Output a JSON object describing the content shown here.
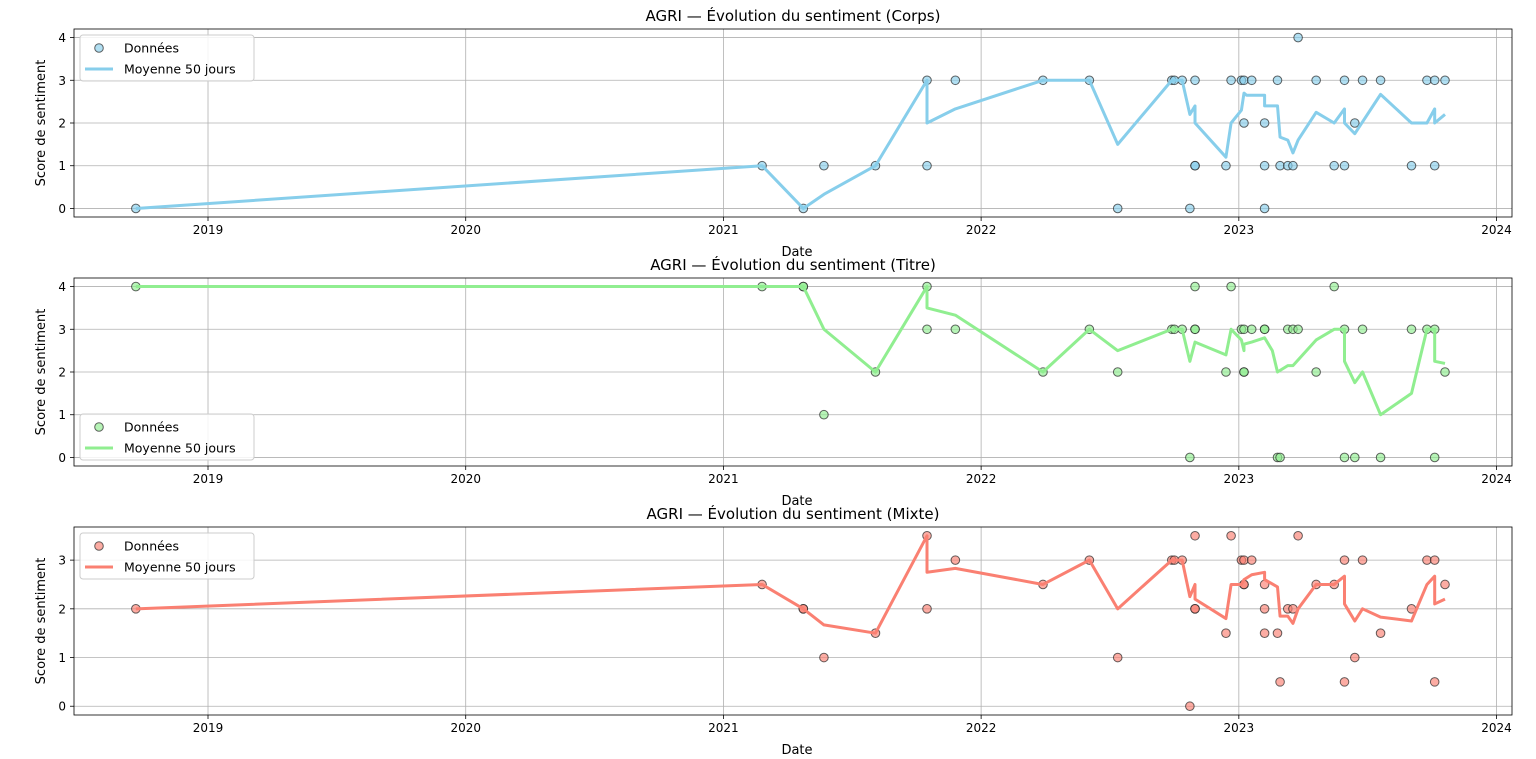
{
  "chart_data": [
    {
      "type": "scatter",
      "title": "AGRI — Évolution du sentiment (Corps)",
      "xlabel": "Date",
      "ylabel": "Score de sentiment",
      "xlim": [
        2018.48,
        2024.06
      ],
      "ylim": [
        -0.2,
        4.2
      ],
      "xticks": [
        2019,
        2020,
        2021,
        2022,
        2023,
        2024
      ],
      "yticks": [
        0,
        1,
        2,
        3,
        4
      ],
      "grid": true,
      "legend_position": "upper left",
      "colors": {
        "fill": "#87CEEB",
        "line": "#87CEEB"
      },
      "series": [
        {
          "name": "Données",
          "kind": "scatter",
          "points": [
            [
              2018.72,
              0
            ],
            [
              2021.15,
              1
            ],
            [
              2021.31,
              0
            ],
            [
              2021.39,
              1
            ],
            [
              2021.59,
              1
            ],
            [
              2021.79,
              3
            ],
            [
              2021.79,
              1
            ],
            [
              2021.9,
              3
            ],
            [
              2022.24,
              3
            ],
            [
              2022.42,
              3
            ],
            [
              2022.53,
              0
            ],
            [
              2022.74,
              3
            ],
            [
              2022.75,
              3
            ],
            [
              2022.78,
              3
            ],
            [
              2022.81,
              0
            ],
            [
              2022.83,
              3
            ],
            [
              2022.83,
              1
            ],
            [
              2022.83,
              1
            ],
            [
              2022.95,
              1
            ],
            [
              2022.97,
              3
            ],
            [
              2023.01,
              3
            ],
            [
              2023.02,
              3
            ],
            [
              2023.02,
              2
            ],
            [
              2023.05,
              3
            ],
            [
              2023.1,
              2
            ],
            [
              2023.1,
              1
            ],
            [
              2023.1,
              0
            ],
            [
              2023.15,
              3
            ],
            [
              2023.16,
              1
            ],
            [
              2023.19,
              1
            ],
            [
              2023.21,
              1
            ],
            [
              2023.23,
              4
            ],
            [
              2023.3,
              3
            ],
            [
              2023.37,
              1
            ],
            [
              2023.41,
              3
            ],
            [
              2023.41,
              1
            ],
            [
              2023.45,
              2
            ],
            [
              2023.48,
              3
            ],
            [
              2023.55,
              3
            ],
            [
              2023.67,
              1
            ],
            [
              2023.73,
              3
            ],
            [
              2023.76,
              3
            ],
            [
              2023.76,
              1
            ],
            [
              2023.8,
              3
            ]
          ]
        },
        {
          "name": "Moyenne 50 jours",
          "kind": "line",
          "points": [
            [
              2018.72,
              0
            ],
            [
              2021.15,
              1
            ],
            [
              2021.31,
              0
            ],
            [
              2021.39,
              0.33
            ],
            [
              2021.59,
              1
            ],
            [
              2021.79,
              3
            ],
            [
              2021.79,
              2
            ],
            [
              2021.9,
              2.33
            ],
            [
              2022.24,
              3
            ],
            [
              2022.42,
              3
            ],
            [
              2022.53,
              1.5
            ],
            [
              2022.74,
              3
            ],
            [
              2022.78,
              3
            ],
            [
              2022.81,
              2.2
            ],
            [
              2022.83,
              2.4
            ],
            [
              2022.83,
              2.0
            ],
            [
              2022.95,
              1.2
            ],
            [
              2022.97,
              2.0
            ],
            [
              2023.01,
              2.3
            ],
            [
              2023.02,
              2.7
            ],
            [
              2023.03,
              2.65
            ],
            [
              2023.1,
              2.65
            ],
            [
              2023.1,
              2.4
            ],
            [
              2023.15,
              2.4
            ],
            [
              2023.16,
              1.67
            ],
            [
              2023.19,
              1.6
            ],
            [
              2023.21,
              1.3
            ],
            [
              2023.23,
              1.6
            ],
            [
              2023.3,
              2.25
            ],
            [
              2023.37,
              2.0
            ],
            [
              2023.41,
              2.33
            ],
            [
              2023.41,
              2.0
            ],
            [
              2023.45,
              1.75
            ],
            [
              2023.55,
              2.67
            ],
            [
              2023.67,
              2.0
            ],
            [
              2023.73,
              2.0
            ],
            [
              2023.76,
              2.33
            ],
            [
              2023.76,
              2.0
            ],
            [
              2023.8,
              2.2
            ]
          ]
        }
      ]
    },
    {
      "type": "scatter",
      "title": "AGRI — Évolution du sentiment (Titre)",
      "xlabel": "Date",
      "ylabel": "Score de sentiment",
      "xlim": [
        2018.48,
        2024.06
      ],
      "ylim": [
        -0.2,
        4.2
      ],
      "xticks": [
        2019,
        2020,
        2021,
        2022,
        2023,
        2024
      ],
      "yticks": [
        0,
        1,
        2,
        3,
        4
      ],
      "grid": true,
      "legend_position": "lower left",
      "colors": {
        "fill": "#90EE90",
        "line": "#90EE90"
      },
      "series": [
        {
          "name": "Données",
          "kind": "scatter",
          "points": [
            [
              2018.72,
              4
            ],
            [
              2021.15,
              4
            ],
            [
              2021.31,
              4
            ],
            [
              2021.31,
              4
            ],
            [
              2021.39,
              1
            ],
            [
              2021.59,
              2
            ],
            [
              2021.79,
              4
            ],
            [
              2021.79,
              3
            ],
            [
              2021.9,
              3
            ],
            [
              2022.24,
              2
            ],
            [
              2022.42,
              3
            ],
            [
              2022.53,
              2
            ],
            [
              2022.74,
              3
            ],
            [
              2022.75,
              3
            ],
            [
              2022.78,
              3
            ],
            [
              2022.81,
              0
            ],
            [
              2022.83,
              4
            ],
            [
              2022.83,
              3
            ],
            [
              2022.83,
              3
            ],
            [
              2022.95,
              2
            ],
            [
              2022.97,
              4
            ],
            [
              2023.01,
              3
            ],
            [
              2023.02,
              3
            ],
            [
              2023.02,
              2
            ],
            [
              2023.02,
              2
            ],
            [
              2023.05,
              3
            ],
            [
              2023.1,
              3
            ],
            [
              2023.1,
              3
            ],
            [
              2023.15,
              0
            ],
            [
              2023.16,
              0
            ],
            [
              2023.19,
              3
            ],
            [
              2023.21,
              3
            ],
            [
              2023.23,
              3
            ],
            [
              2023.3,
              2
            ],
            [
              2023.37,
              4
            ],
            [
              2023.41,
              3
            ],
            [
              2023.41,
              0
            ],
            [
              2023.45,
              0
            ],
            [
              2023.48,
              3
            ],
            [
              2023.55,
              0
            ],
            [
              2023.67,
              3
            ],
            [
              2023.73,
              3
            ],
            [
              2023.76,
              3
            ],
            [
              2023.76,
              0
            ],
            [
              2023.8,
              2
            ]
          ]
        },
        {
          "name": "Moyenne 50 jours",
          "kind": "line",
          "points": [
            [
              2018.72,
              4
            ],
            [
              2021.15,
              4
            ],
            [
              2021.31,
              4
            ],
            [
              2021.39,
              3
            ],
            [
              2021.59,
              2
            ],
            [
              2021.79,
              4
            ],
            [
              2021.79,
              3.5
            ],
            [
              2021.9,
              3.33
            ],
            [
              2022.24,
              2
            ],
            [
              2022.42,
              3
            ],
            [
              2022.53,
              2.5
            ],
            [
              2022.74,
              3
            ],
            [
              2022.78,
              3
            ],
            [
              2022.81,
              2.25
            ],
            [
              2022.83,
              2.7
            ],
            [
              2022.95,
              2.4
            ],
            [
              2022.97,
              3
            ],
            [
              2023.01,
              2.75
            ],
            [
              2023.02,
              2.5
            ],
            [
              2023.02,
              2.65
            ],
            [
              2023.05,
              2.7
            ],
            [
              2023.1,
              2.8
            ],
            [
              2023.13,
              2.5
            ],
            [
              2023.15,
              2.0
            ],
            [
              2023.19,
              2.15
            ],
            [
              2023.21,
              2.15
            ],
            [
              2023.3,
              2.75
            ],
            [
              2023.37,
              3
            ],
            [
              2023.41,
              3
            ],
            [
              2023.41,
              2.25
            ],
            [
              2023.45,
              1.75
            ],
            [
              2023.48,
              2.0
            ],
            [
              2023.55,
              1.0
            ],
            [
              2023.67,
              1.5
            ],
            [
              2023.73,
              3
            ],
            [
              2023.76,
              3
            ],
            [
              2023.76,
              2.25
            ],
            [
              2023.8,
              2.2
            ]
          ]
        }
      ]
    },
    {
      "type": "scatter",
      "title": "AGRI — Évolution du sentiment (Mixte)",
      "xlabel": "Date",
      "ylabel": "Score de sentiment",
      "xlim": [
        2018.48,
        2024.06
      ],
      "ylim": [
        -0.18,
        3.68
      ],
      "xticks": [
        2019,
        2020,
        2021,
        2022,
        2023,
        2024
      ],
      "yticks": [
        0,
        1,
        2,
        3
      ],
      "grid": true,
      "legend_position": "upper left",
      "colors": {
        "fill": "#FA8072",
        "line": "#FA8072"
      },
      "series": [
        {
          "name": "Données",
          "kind": "scatter",
          "points": [
            [
              2018.72,
              2
            ],
            [
              2021.15,
              2.5
            ],
            [
              2021.31,
              2
            ],
            [
              2021.31,
              2
            ],
            [
              2021.39,
              1
            ],
            [
              2021.59,
              1.5
            ],
            [
              2021.79,
              3.5
            ],
            [
              2021.79,
              2
            ],
            [
              2021.9,
              3
            ],
            [
              2022.24,
              2.5
            ],
            [
              2022.42,
              3
            ],
            [
              2022.53,
              1
            ],
            [
              2022.74,
              3
            ],
            [
              2022.75,
              3
            ],
            [
              2022.78,
              3
            ],
            [
              2022.81,
              0
            ],
            [
              2022.83,
              3.5
            ],
            [
              2022.83,
              2
            ],
            [
              2022.83,
              2
            ],
            [
              2022.95,
              1.5
            ],
            [
              2022.97,
              3.5
            ],
            [
              2023.01,
              3
            ],
            [
              2023.02,
              3
            ],
            [
              2023.02,
              2.5
            ],
            [
              2023.02,
              2.5
            ],
            [
              2023.05,
              3
            ],
            [
              2023.1,
              2.5
            ],
            [
              2023.1,
              2
            ],
            [
              2023.1,
              1.5
            ],
            [
              2023.15,
              1.5
            ],
            [
              2023.16,
              0.5
            ],
            [
              2023.19,
              2
            ],
            [
              2023.21,
              2
            ],
            [
              2023.23,
              3.5
            ],
            [
              2023.3,
              2.5
            ],
            [
              2023.37,
              2.5
            ],
            [
              2023.41,
              3
            ],
            [
              2023.41,
              0.5
            ],
            [
              2023.45,
              1
            ],
            [
              2023.48,
              3
            ],
            [
              2023.55,
              1.5
            ],
            [
              2023.67,
              2
            ],
            [
              2023.73,
              3
            ],
            [
              2023.76,
              3
            ],
            [
              2023.76,
              0.5
            ],
            [
              2023.8,
              2.5
            ]
          ]
        },
        {
          "name": "Moyenne 50 jours",
          "kind": "line",
          "points": [
            [
              2018.72,
              2
            ],
            [
              2021.15,
              2.5
            ],
            [
              2021.31,
              2
            ],
            [
              2021.39,
              1.67
            ],
            [
              2021.59,
              1.5
            ],
            [
              2021.79,
              3.5
            ],
            [
              2021.79,
              2.75
            ],
            [
              2021.9,
              2.83
            ],
            [
              2022.24,
              2.5
            ],
            [
              2022.42,
              3
            ],
            [
              2022.53,
              2
            ],
            [
              2022.74,
              3
            ],
            [
              2022.78,
              3
            ],
            [
              2022.81,
              2.25
            ],
            [
              2022.83,
              2.5
            ],
            [
              2022.83,
              2.2
            ],
            [
              2022.95,
              1.8
            ],
            [
              2022.97,
              2.5
            ],
            [
              2023.01,
              2.5
            ],
            [
              2023.02,
              2.6
            ],
            [
              2023.05,
              2.7
            ],
            [
              2023.1,
              2.75
            ],
            [
              2023.1,
              2.6
            ],
            [
              2023.15,
              2.45
            ],
            [
              2023.16,
              1.85
            ],
            [
              2023.19,
              1.85
            ],
            [
              2023.21,
              1.7
            ],
            [
              2023.23,
              2.0
            ],
            [
              2023.3,
              2.5
            ],
            [
              2023.37,
              2.5
            ],
            [
              2023.41,
              2.67
            ],
            [
              2023.41,
              2.1
            ],
            [
              2023.45,
              1.75
            ],
            [
              2023.48,
              2.0
            ],
            [
              2023.55,
              1.83
            ],
            [
              2023.67,
              1.75
            ],
            [
              2023.73,
              2.5
            ],
            [
              2023.76,
              2.67
            ],
            [
              2023.76,
              2.1
            ],
            [
              2023.8,
              2.2
            ]
          ]
        }
      ]
    }
  ]
}
